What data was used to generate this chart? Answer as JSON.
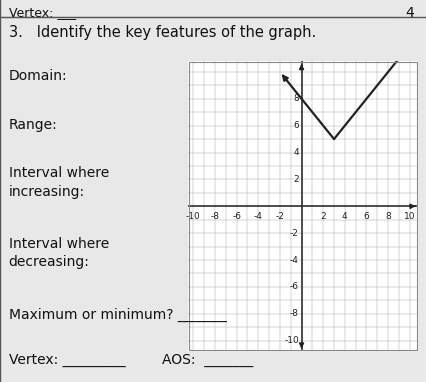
{
  "page_bg": "#e8e8e8",
  "graph_bg": "#ffffff",
  "grid_color": "#aaaaaa",
  "axis_color": "#222222",
  "line_color": "#222222",
  "line_width": 1.6,
  "border_color": "#888888",
  "text_color": "#111111",
  "xlim": [
    -10.5,
    10.8
  ],
  "ylim": [
    -10.8,
    10.8
  ],
  "vertex_x": 3,
  "vertex_y": 5,
  "tick_fontsize": 6.5,
  "label_fontsize": 10,
  "title_fontsize": 10.5,
  "top_text": "Vertex: ___",
  "number3": "3.   Identify the key features of the graph.",
  "domain_lbl": "Domain:",
  "range_lbl": "Range:",
  "inc_lbl": "Interval where\nincreasing:",
  "dec_lbl": "Interval where\ndecreasing:",
  "maxmin_lbl": "Maximum or minimum? _______",
  "vertex_lbl": "Vertex: _________",
  "aos_lbl": "AOS:  _______",
  "num4": "4"
}
